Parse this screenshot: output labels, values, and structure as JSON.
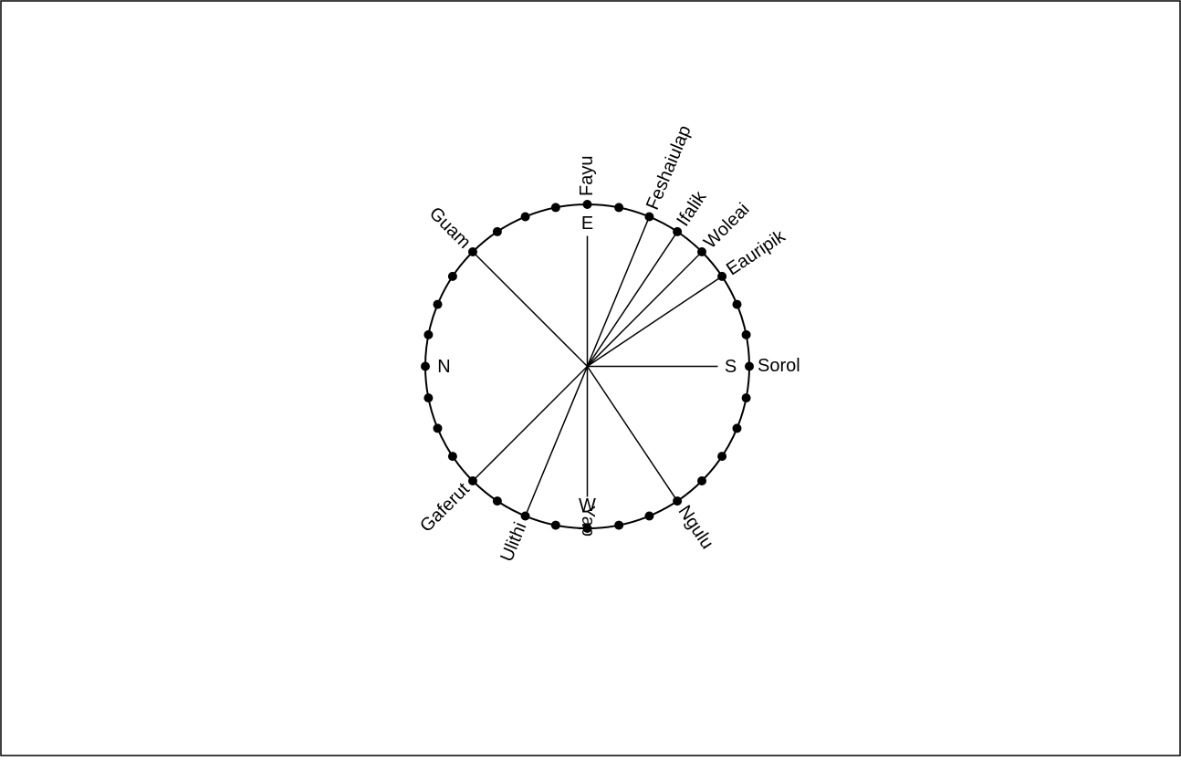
{
  "islands": [
    "Fayu",
    "Feshaiulap",
    "Ifalik",
    "Woleai",
    "Eauripik",
    "Sorol",
    "Ngulu",
    "Yap",
    "Ulithi",
    "Gaferut",
    "Guam"
  ],
  "directions": [
    "E",
    "S",
    "W",
    "N"
  ]
}
